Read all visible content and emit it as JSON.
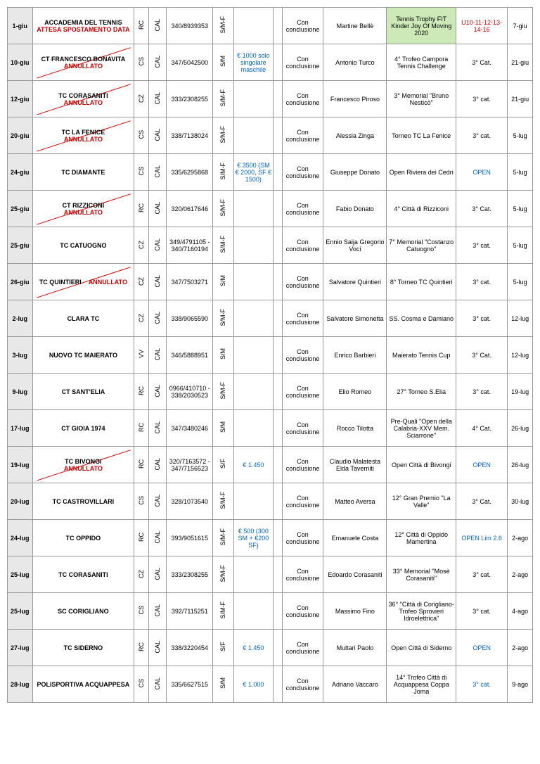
{
  "common": {
    "con_conclusione": "Con conclusione",
    "region": "CAL",
    "terza_cat": "3° cat.",
    "terza_Cat": "3° Cat.",
    "open": "OPEN"
  },
  "rows": [
    {
      "d1": "1-giu",
      "club_main": "ACCADEMIA DEL TENNIS",
      "club_extra": "ATTESA SPOSTAMENTO DATA",
      "club_extra_red": true,
      "annullato": false,
      "strike": false,
      "prov": "RC",
      "phone": "340/8939353",
      "cat": "S/M-F",
      "prize": "",
      "prize_color": "",
      "ref": "Martine Bellè",
      "event": "Tennis Trophy FIT Kinder Joy Of Moving 2020",
      "event_green": true,
      "level": "U10-11-12-13-14-16",
      "level_color": "red",
      "d2": "7-giu"
    },
    {
      "d1": "10-giu",
      "club_main": "CT FRANCESCO BONAVITA",
      "annullato": true,
      "strike": true,
      "prov": "CS",
      "phone": "347/5042500",
      "cat": "S/M",
      "prize": "€ 1000 solo singolare maschile",
      "prize_color": "blue",
      "ref": "Antonio Turco",
      "event": "4° Trofeo Campora Tennis Challenge",
      "level": "3° Cat.",
      "level_color": "",
      "d2": "21-giu"
    },
    {
      "d1": "12-giu",
      "club_main": "TC CORASANITI",
      "annullato": true,
      "strike": true,
      "prov": "CZ",
      "phone": "333/2308255",
      "cat": "S/M-F",
      "prize": "",
      "ref": "Francesco Piroso",
      "event": "3° Memorial \"Bruno Nesticò\"",
      "level": "3° cat.",
      "level_color": "",
      "d2": "21-giu"
    },
    {
      "d1": "20-giu",
      "club_main": "TC LA FENICE",
      "annullato": true,
      "strike": true,
      "prov": "CS",
      "phone": "338/7138024",
      "cat": "S/M-F",
      "prize": "",
      "ref": "Alessia Zinga",
      "event": "Torneo TC La Fenice",
      "level": "3° cat.",
      "level_color": "",
      "d2": "5-lug"
    },
    {
      "d1": "24-giu",
      "club_main": "TC DIAMANTE",
      "annullato": false,
      "strike": false,
      "prov": "CS",
      "phone": "335/6295868",
      "cat": "S/M-F",
      "prize": "€ 3500 (SM € 2000, SF € 1500)",
      "prize_color": "blue",
      "ref": "Giuseppe Donato",
      "event": "Open Riviera dei Cedri",
      "level": "OPEN",
      "level_color": "blue",
      "d2": "5-lug"
    },
    {
      "d1": "25-giu",
      "club_main": "CT RIZZICONI",
      "annullato": true,
      "strike": true,
      "prov": "RC",
      "phone": "320/0617646",
      "cat": "S/M-F",
      "prize": "",
      "ref": "Fabio Donato",
      "event": "4° Città di Rizziconi",
      "level": "3° Cat.",
      "level_color": "",
      "d2": "5-lug"
    },
    {
      "d1": "25-giu",
      "club_main": "TC CATUOGNO",
      "annullato": false,
      "strike": false,
      "prov": "CZ",
      "phone": "349/4791105 - 340/7160194",
      "cat": "S/M-F",
      "prize": "",
      "ref": "Ennio Saija Gregorio Voci",
      "event": "7° Memorial \"Costanzo Catuogno\"",
      "level": "3° cat.",
      "level_color": "",
      "d2": "5-lug"
    },
    {
      "d1": "26-giu",
      "club_main": "TC QUINTIERI",
      "annullato": true,
      "annullato_inline": true,
      "strike": true,
      "prov": "CZ",
      "phone": "347/7503271",
      "cat": "S/M",
      "prize": "",
      "ref": "Salvatore Quintieri",
      "event": "8° Torneo TC Quintieri",
      "level": "3° cat.",
      "level_color": "",
      "d2": "5-lug"
    },
    {
      "d1": "2-lug",
      "club_main": "CLARA TC",
      "annullato": false,
      "strike": false,
      "prov": "CZ",
      "phone": "338/9065590",
      "cat": "S/M-F",
      "prize": "",
      "ref": "Salvatore Simonetta",
      "event": "SS. Cosma e Damiano",
      "level": "3° cat.",
      "level_color": "",
      "d2": "12-lug"
    },
    {
      "d1": "3-lug",
      "club_main": "NUOVO TC MAIERATO",
      "annullato": false,
      "strike": false,
      "prov": "VV",
      "phone": "346/5888951",
      "cat": "S/M",
      "prize": "",
      "ref": "Enrico Barbieri",
      "event": "Maierato Tennis Cup",
      "level": "3° Cat.",
      "level_color": "",
      "d2": "12-lug"
    },
    {
      "d1": "9-lug",
      "club_main": "CT SANT'ELIA",
      "annullato": false,
      "strike": false,
      "prov": "RC",
      "phone": "0966/410710 - 338/2030523",
      "cat": "S/M-F",
      "prize": "",
      "ref": "Elio Romeo",
      "event": "27° Torneo S.Elia",
      "level": "3° cat.",
      "level_color": "",
      "d2": "19-lug"
    },
    {
      "d1": "17-lug",
      "club_main": "CT GIOIA 1974",
      "annullato": false,
      "strike": false,
      "prov": "RC",
      "phone": "347/3480246",
      "cat": "S/M",
      "prize": "",
      "ref": "Rocco Tilotta",
      "event": "Pre-Quali \"Open della Calabria-XXV Mem. Sciarrone\"",
      "level": "4° Cat.",
      "level_color": "",
      "d2": "26-lug"
    },
    {
      "d1": "19-lug",
      "club_main": "TC BIVONGI",
      "annullato": true,
      "strike": true,
      "prov": "RC",
      "phone": "320/7163572 - 347/7156523",
      "cat": "S/F",
      "prize": "€ 1.450",
      "prize_color": "blue",
      "ref": "Claudio Malatesta Elda Taverniti",
      "event": "Open Città di Bivongi",
      "level": "OPEN",
      "level_color": "blue",
      "d2": "26-lug"
    },
    {
      "d1": "20-lug",
      "club_main": "TC CASTROVILLARI",
      "annullato": false,
      "strike": false,
      "prov": "CS",
      "phone": "328/1073540",
      "cat": "S/M-F",
      "prize": "",
      "ref": "Matteo Aversa",
      "event": "12° Gran Premio \"La Valle\"",
      "level": "3° Cat.",
      "level_color": "",
      "d2": "30-lug"
    },
    {
      "d1": "24-lug",
      "club_main": "TC OPPIDO",
      "annullato": false,
      "strike": false,
      "prov": "RC",
      "phone": "393/9051615",
      "cat": "S/M-F",
      "prize": "€ 500 (300 SM + €200 SF)",
      "prize_color": "blue",
      "ref": "Emanuele Costa",
      "event": "12° Città di Oppido Mamertina",
      "level": "OPEN Lim 2.6",
      "level_color": "blue",
      "d2": "2-ago"
    },
    {
      "d1": "25-lug",
      "club_main": "TC CORASANITI",
      "annullato": false,
      "strike": false,
      "prov": "CZ",
      "phone": "333/2308255",
      "cat": "S/M-F",
      "prize": "",
      "ref": "Edoardo Corasaniti",
      "event": "33° Memorial \"Mosè Corasaniti\"",
      "level": "3° cat.",
      "level_color": "",
      "d2": "2-ago"
    },
    {
      "d1": "25-lug",
      "club_main": "SC CORIGLIANO",
      "annullato": false,
      "strike": false,
      "prov": "CS",
      "phone": "392/7115251",
      "cat": "S/M-F",
      "prize": "",
      "ref": "Massimo Fino",
      "event": "36° \"Città di Corigliano-Trofeo Sprovieri Idroelettrica\"",
      "level": "3° cat.",
      "level_color": "",
      "d2": "4-ago"
    },
    {
      "d1": "27-lug",
      "club_main": "TC SIDERNO",
      "annullato": false,
      "strike": false,
      "prov": "RC",
      "phone": "338/3220454",
      "cat": "S/F",
      "prize": "€ 1.450",
      "prize_color": "blue",
      "ref": "Multari Paolo",
      "event": "Open Città di Siderno",
      "level": "OPEN",
      "level_color": "blue",
      "d2": "2-ago"
    },
    {
      "d1": "28-lug",
      "club_main": "POLISPORTIVA ACQUAPPESA",
      "annullato": false,
      "strike": false,
      "prov": "CS",
      "phone": "335/6627515",
      "cat": "S/M",
      "prize": "€ 1.000",
      "prize_color": "blue",
      "ref": "Adriano Vaccaro",
      "event": "14° Trofeo Città di Acquappesa Coppa Joma",
      "level": "3° cat.",
      "level_color": "blue",
      "d2": "9-ago"
    }
  ]
}
